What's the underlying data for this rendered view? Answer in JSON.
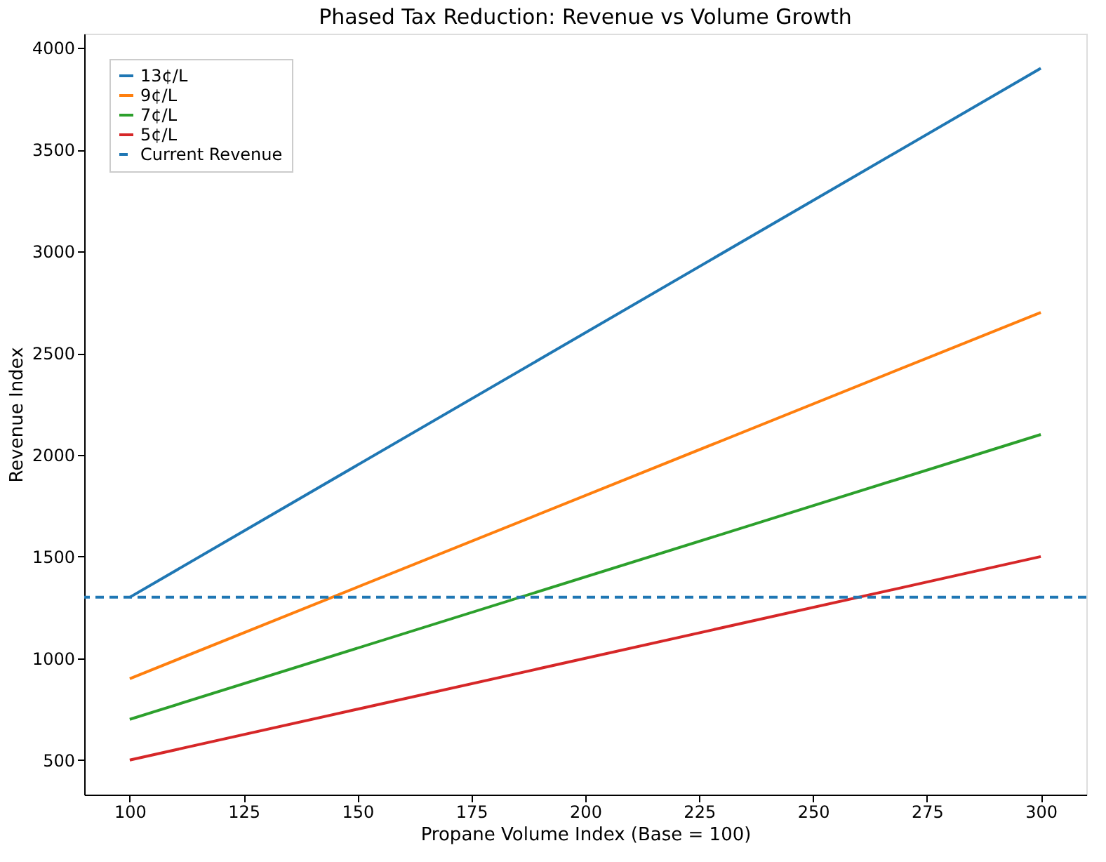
{
  "chart_data": {
    "type": "line",
    "title": "Phased Tax Reduction: Revenue vs Volume Growth",
    "xlabel": "Propane Volume Index (Base = 100)",
    "ylabel": "Revenue Index",
    "x": [
      100,
      300
    ],
    "series": [
      {
        "name": "13¢/L",
        "color": "#1f77b4",
        "values": [
          1300,
          3900
        ]
      },
      {
        "name": "9¢/L",
        "color": "#ff7f0e",
        "values": [
          900,
          2700
        ]
      },
      {
        "name": "7¢/L",
        "color": "#2ca02c",
        "values": [
          700,
          2100
        ]
      },
      {
        "name": "5¢/L",
        "color": "#d62728",
        "values": [
          500,
          1500
        ]
      }
    ],
    "ref_lines": [
      {
        "axis": "y",
        "value": 1300,
        "label": "Current Revenue",
        "color": "#1f77b4",
        "line_style": "dashed"
      }
    ],
    "xlim": [
      90,
      310
    ],
    "ylim": [
      330,
      4070
    ],
    "xticks": [
      100,
      125,
      150,
      175,
      200,
      225,
      250,
      275,
      300
    ],
    "yticks": [
      500,
      1000,
      1500,
      2000,
      2500,
      3000,
      3500,
      4000
    ],
    "legend": "top left",
    "line_style": "solid"
  }
}
